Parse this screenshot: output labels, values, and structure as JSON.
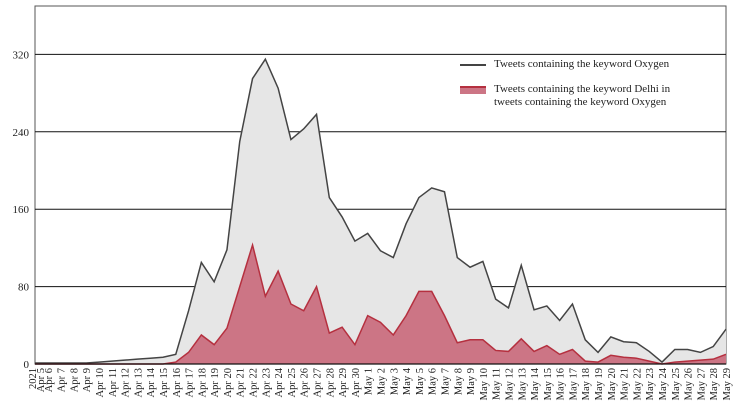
{
  "chart_data": {
    "type": "area",
    "year_label": "2021",
    "categories": [
      "Apr 5",
      "Apr 6",
      "Apr 7",
      "Apr 8",
      "Apr 9",
      "Apr 10",
      "Apr 11",
      "Apr 12",
      "Apr 13",
      "Apr 14",
      "Apr 15",
      "Apr 16",
      "Apr 17",
      "Apr 18",
      "Apr 19",
      "Apr 20",
      "Apr 21",
      "Apr 22",
      "Apr 23",
      "Apr 24",
      "Apr 25",
      "Apr 26",
      "Apr 27",
      "Apr 28",
      "Apr 29",
      "Apr 30",
      "May 1",
      "May 2",
      "May 3",
      "May 4",
      "May 5",
      "May 6",
      "May 7",
      "May 8",
      "May 9",
      "May 10",
      "May 11",
      "May 12",
      "May 13",
      "May 14",
      "May 15",
      "May 16",
      "May 17",
      "May 18",
      "May 19",
      "May 20",
      "May 21",
      "May 22",
      "May 23",
      "May 24",
      "May 25",
      "May 26",
      "May 27",
      "May 28",
      "May 29"
    ],
    "series": [
      {
        "name": "Tweets containing the keyword Oxygen",
        "color": "#444444",
        "fill": "#e6e6e6",
        "values": [
          1,
          1,
          1,
          1,
          1,
          2,
          3,
          4,
          5,
          6,
          7,
          10,
          55,
          105,
          85,
          118,
          230,
          295,
          315,
          285,
          232,
          243,
          258,
          172,
          152,
          127,
          135,
          117,
          110,
          145,
          172,
          182,
          178,
          110,
          100,
          106,
          67,
          58,
          102,
          56,
          60,
          45,
          62,
          25,
          12,
          28,
          23,
          22,
          13,
          2,
          15,
          15,
          12,
          18,
          36
        ]
      },
      {
        "name": "Tweets containing the keyword Delhi in tweets containing the keyword Oxygen",
        "color": "#b5303f",
        "fill": "#cc7585",
        "values": [
          0,
          0,
          0,
          0,
          0,
          0,
          0,
          0,
          0,
          0,
          0,
          2,
          12,
          30,
          20,
          37,
          80,
          123,
          70,
          96,
          62,
          55,
          80,
          32,
          38,
          20,
          50,
          43,
          30,
          50,
          75,
          75,
          50,
          22,
          25,
          25,
          14,
          13,
          26,
          13,
          19,
          10,
          15,
          3,
          2,
          9,
          7,
          6,
          3,
          0,
          2,
          3,
          4,
          5,
          10
        ]
      }
    ],
    "ylim": [
      0,
      370
    ],
    "yticks": [
      0,
      80,
      160,
      240,
      320
    ],
    "grid": true
  }
}
